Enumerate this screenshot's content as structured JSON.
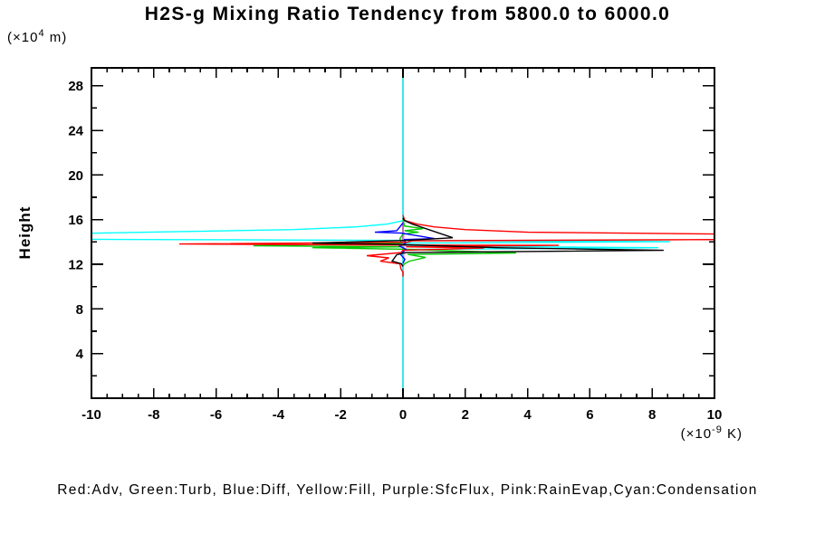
{
  "title": "H2S-g Mixing Ratio Tendency from 5800.0 to 6000.0",
  "legend_note": "Red:Adv, Green:Turb, Blue:Diff, Yellow:Fill, Purple:SfcFlux, Pink:RainEvap,Cyan:Condensation",
  "y_unit": {
    "prefix": "(×10",
    "exp": "4",
    "suffix": " m)"
  },
  "x_unit": {
    "prefix": "(×10",
    "exp": "-9",
    "suffix": " K)"
  },
  "chart_data": {
    "type": "line",
    "title": "H2S-g Mixing Ratio Tendency from 5800.0 to 6000.0",
    "xlabel": "(x10^-9 K)",
    "ylabel": "Height",
    "ylabel_unit": "(x10^4 m)",
    "xlim": [
      -10,
      10
    ],
    "ylim": [
      0,
      29.6
    ],
    "x_major_ticks": [
      -10,
      -8,
      -6,
      -4,
      -2,
      0,
      2,
      4,
      6,
      8,
      10
    ],
    "x_minor_step": 0.5,
    "y_major_ticks": [
      4,
      8,
      12,
      16,
      20,
      24,
      28
    ],
    "y_minor_step": 2,
    "grid": false,
    "zero_reference_line_x": 0,
    "legend_position": "bottom-caption",
    "series": [
      {
        "name": "Fill",
        "color": "#ffff00",
        "points": [
          [
            0,
            29.6
          ],
          [
            0,
            0.2
          ]
        ]
      },
      {
        "name": "SfcFlux",
        "color": "#9932cc",
        "points": [
          [
            0,
            29.6
          ],
          [
            0,
            0.2
          ]
        ]
      },
      {
        "name": "Condensation",
        "color": "#00ffff",
        "points": [
          [
            0,
            29.6
          ],
          [
            0,
            16.15
          ],
          [
            0.02,
            15.92
          ],
          [
            -0.5,
            15.6
          ],
          [
            -1.5,
            15.35
          ],
          [
            -3.5,
            15.11
          ],
          [
            -10.4,
            14.77
          ],
          [
            -10.4,
            14.24
          ],
          [
            -0.2,
            14.14
          ],
          [
            8.58,
            14.02
          ],
          [
            0.05,
            13.9
          ],
          [
            -0.1,
            13.66
          ],
          [
            8.2,
            13.49
          ],
          [
            0.05,
            13.33
          ],
          [
            0,
            13.1
          ],
          [
            0,
            0.2
          ]
        ]
      },
      {
        "name": "RainEvap",
        "color": "#efa0ef",
        "points": [
          [
            0.03,
            14.9
          ],
          [
            0.03,
            12.2
          ]
        ]
      },
      {
        "name": "Turb",
        "color": "#00c800",
        "points": [
          [
            0,
            16.05
          ],
          [
            0.05,
            15.43
          ],
          [
            0.64,
            15.19
          ],
          [
            0.05,
            15.0
          ],
          [
            0.5,
            14.87
          ],
          [
            0,
            14.71
          ],
          [
            -0.1,
            14.3
          ],
          [
            -0.05,
            13.9
          ],
          [
            -4.8,
            13.66
          ],
          [
            -0.05,
            13.57
          ],
          [
            -2.91,
            13.49
          ],
          [
            0.1,
            13.35
          ],
          [
            3.63,
            13.01
          ],
          [
            0.15,
            12.89
          ],
          [
            0.73,
            12.61
          ],
          [
            0.2,
            12.28
          ],
          [
            0.05,
            12.04
          ],
          [
            0,
            11.85
          ]
        ]
      },
      {
        "name": "Diff",
        "color": "#0000ff",
        "points": [
          [
            0,
            15.7
          ],
          [
            -0.2,
            15.0
          ],
          [
            -0.9,
            14.87
          ],
          [
            -0.05,
            14.79
          ],
          [
            1.02,
            14.3
          ],
          [
            0.05,
            14.22
          ],
          [
            0.08,
            13.9
          ],
          [
            -0.1,
            13.62
          ],
          [
            0.1,
            13.35
          ],
          [
            -0.08,
            12.9
          ],
          [
            0.06,
            12.45
          ],
          [
            0,
            12.1
          ]
        ]
      },
      {
        "name": "Adv",
        "color": "#ff0000",
        "points": [
          [
            0,
            16.4
          ],
          [
            0.06,
            15.92
          ],
          [
            0.45,
            15.6
          ],
          [
            1.0,
            15.35
          ],
          [
            2.0,
            15.11
          ],
          [
            4.0,
            14.87
          ],
          [
            10.4,
            14.7
          ],
          [
            10.4,
            14.22
          ],
          [
            8.2,
            14.19
          ],
          [
            0.3,
            14.1
          ],
          [
            0.15,
            13.98
          ],
          [
            -7.18,
            13.82
          ],
          [
            -0.1,
            13.72
          ],
          [
            5.0,
            13.7
          ],
          [
            0.1,
            13.57
          ],
          [
            2.6,
            13.45
          ],
          [
            0,
            13.25
          ],
          [
            -0.06,
            13.05
          ],
          [
            -1.16,
            12.77
          ],
          [
            -0.45,
            12.57
          ],
          [
            -0.73,
            12.28
          ],
          [
            -0.1,
            12.04
          ],
          [
            -0.06,
            11.56
          ],
          [
            0,
            11.3
          ],
          [
            0,
            10.9
          ]
        ]
      },
      {
        "name": "Net (unlabeled black)",
        "color": "#000000",
        "points": [
          [
            0,
            16.15
          ],
          [
            0.05,
            15.92
          ],
          [
            0.3,
            15.6
          ],
          [
            1.6,
            14.38
          ],
          [
            0.15,
            14.14
          ],
          [
            -2.91,
            13.9
          ],
          [
            -0.12,
            13.78
          ],
          [
            3.0,
            13.49
          ],
          [
            8.37,
            13.25
          ],
          [
            0.1,
            13.05
          ],
          [
            -0.2,
            12.85
          ],
          [
            -0.35,
            12.28
          ],
          [
            -0.05,
            12.04
          ],
          [
            0,
            11.8
          ]
        ]
      }
    ]
  }
}
